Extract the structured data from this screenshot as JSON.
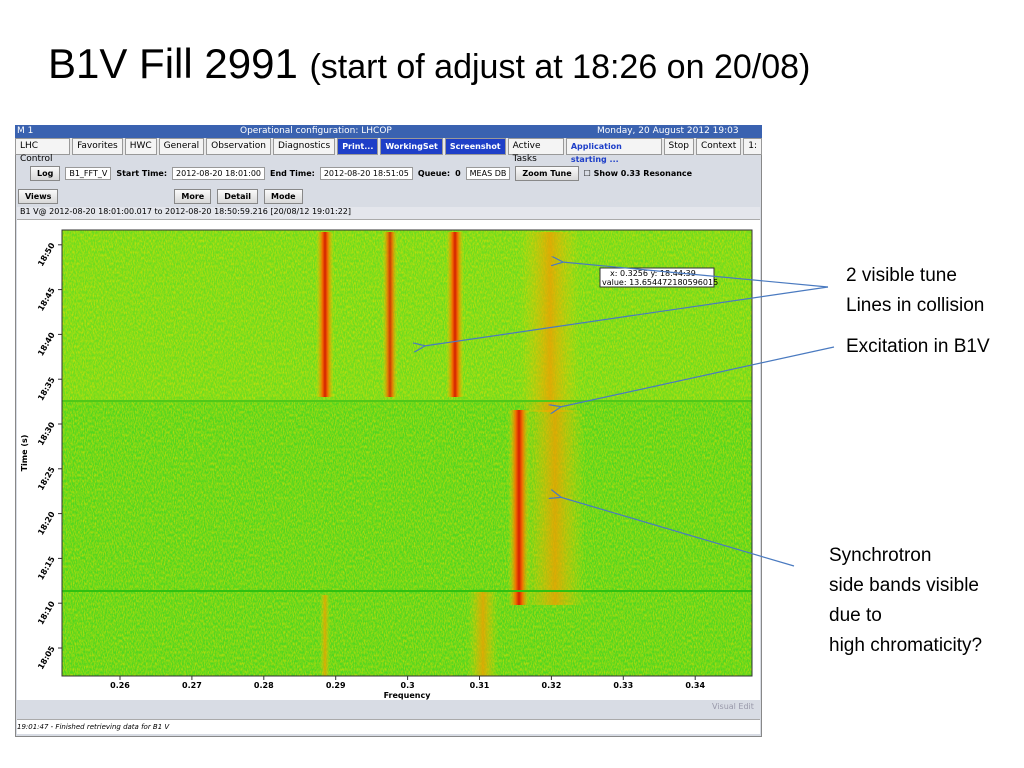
{
  "slide": {
    "title": "B1V Fill 2991",
    "subtitle": "(start of adjust at 18:26 on 20/08)"
  },
  "window": {
    "title_left": "M 1",
    "title_center": "Operational configuration: LHCOP",
    "title_right": "Monday, 20 August 2012  19:03",
    "tabs": [
      "LHC Control",
      "Favorites",
      "HWC",
      "General",
      "Observation",
      "Diagnostics",
      "Print...",
      "WorkingSet",
      "Screenshot",
      "Active Tasks",
      "Application starting ...",
      "Stop",
      "Context",
      "1:"
    ],
    "toolbar": {
      "log": "Log",
      "device": "B1_FFT_V",
      "start_label": "Start Time:",
      "start": "2012-08-20 18:01:00",
      "end_label": "End Time:",
      "end": "2012-08-20 18:51:05",
      "queue_label": "Queue:",
      "queue": "0",
      "db": "MEAS DB",
      "zoom": "Zoom Tune",
      "resonance": "Show 0.33 Resonance"
    },
    "toolbar2": [
      "Views",
      "More",
      "Detail",
      "Mode"
    ],
    "panel_title": "B1 V@ 2012-08-20 18:01:00.017 to 2012-08-20 18:50:59.216  [20/08/12 19:01:22]",
    "plot": {
      "x_label": "Frequency",
      "y_label": "Time (s)",
      "xticks": [
        "0.26",
        "0.27",
        "0.28",
        "0.29",
        "0.3",
        "0.31",
        "0.32",
        "0.33",
        "0.34"
      ],
      "yticks": [
        "18:05",
        "18:10",
        "18:15",
        "18:20",
        "18:25",
        "18:30",
        "18:35",
        "18:40",
        "18:45",
        "18:50"
      ],
      "tooltip": [
        "x: 0.3256 y: 18:44:39",
        "value: 13.654472180596015"
      ]
    },
    "footer_right": "Visual Edit",
    "status": "19:01:47 - Finished retrieving data for B1 V"
  },
  "annotations": [
    {
      "lines": [
        "2 visible tune",
        "Lines  in collision"
      ]
    },
    {
      "lines": [
        "Excitation in B1V"
      ]
    },
    {
      "lines": [
        "Synchrotron",
        "side bands visible",
        "due to",
        "high chromaticity?"
      ]
    }
  ]
}
